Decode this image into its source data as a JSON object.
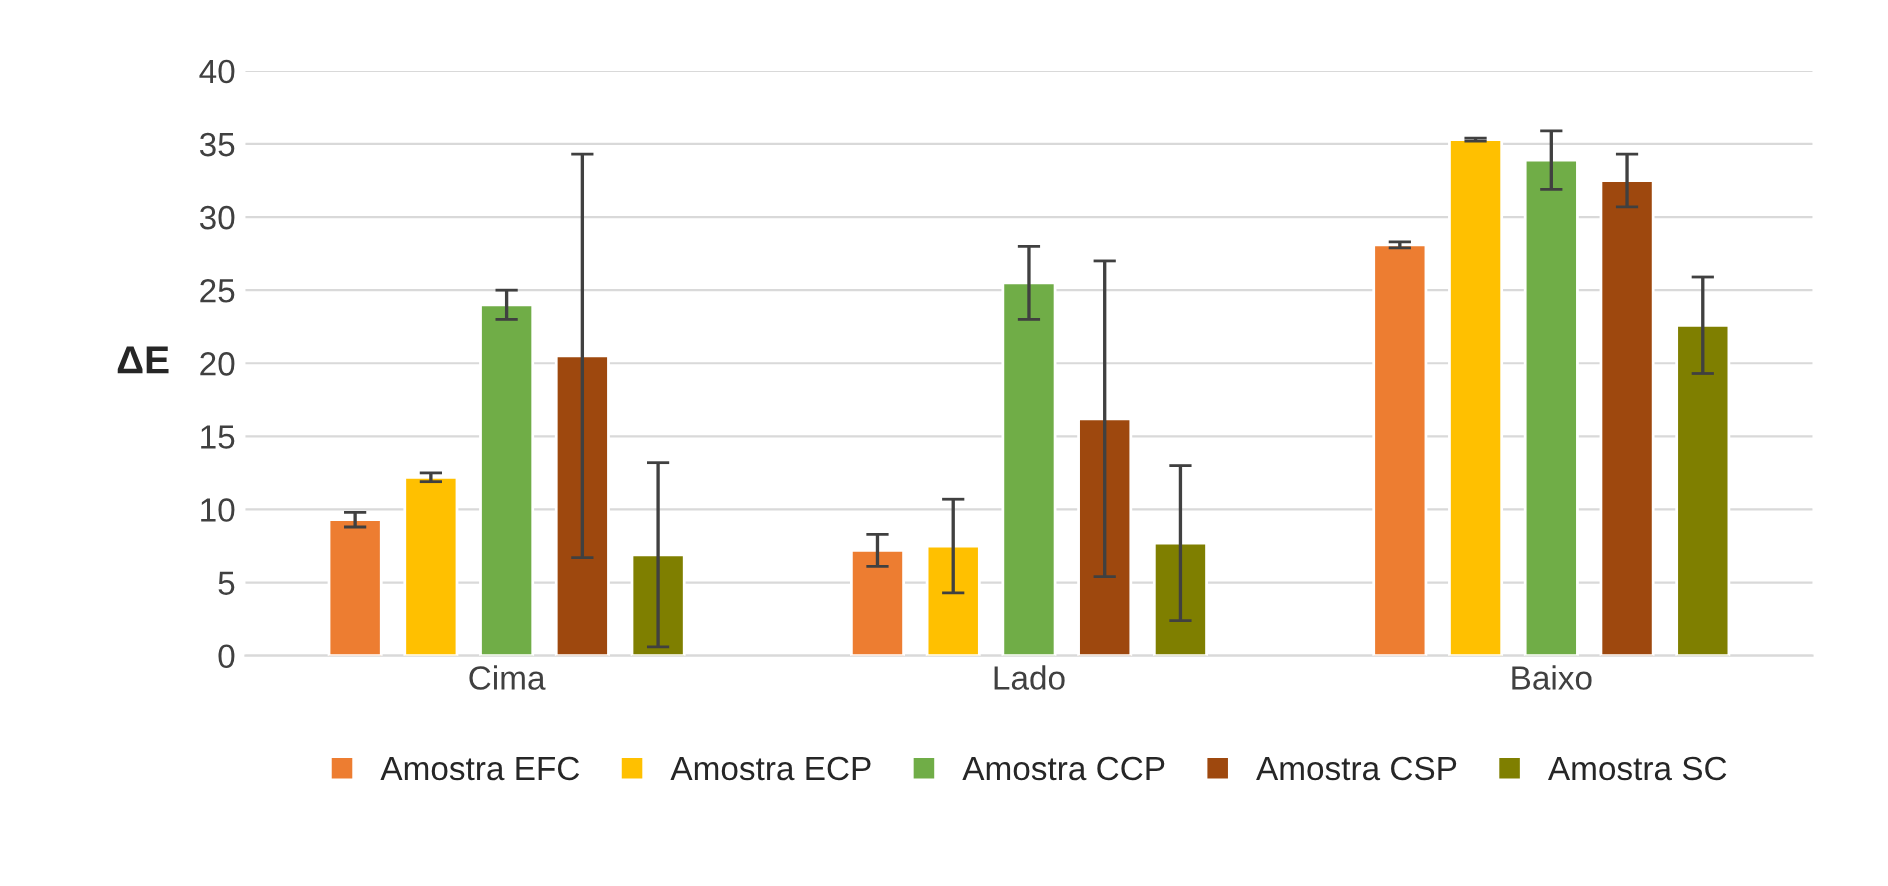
{
  "chart_data": {
    "type": "bar",
    "ylabel": "ΔE",
    "categories": [
      "Cima",
      "Lado",
      "Baixo"
    ],
    "series": [
      {
        "name": "Amostra EFC",
        "color": "#ed7d31",
        "values": [
          9.3,
          7.2,
          28.1
        ],
        "errors": [
          0.5,
          1.1,
          0.2
        ]
      },
      {
        "name": "Amostra ECP",
        "color": "#ffc000",
        "values": [
          12.2,
          7.5,
          35.3
        ],
        "errors": [
          0.3,
          3.2,
          0.1
        ]
      },
      {
        "name": "Amostra CCP",
        "color": "#70ad47",
        "values": [
          24.0,
          25.5,
          33.9
        ],
        "errors": [
          1.0,
          2.5,
          2.0
        ]
      },
      {
        "name": "Amostra CSP",
        "color": "#9e480e",
        "values": [
          20.5,
          16.2,
          32.5
        ],
        "errors": [
          13.8,
          10.8,
          1.8
        ]
      },
      {
        "name": "Amostra SC",
        "color": "#7f7f00",
        "values": [
          6.9,
          7.7,
          22.6
        ],
        "errors": [
          6.3,
          5.3,
          3.3
        ]
      }
    ],
    "ylim": [
      0,
      40
    ],
    "yticks": [
      0,
      5,
      10,
      15,
      20,
      25,
      30,
      35,
      40
    ],
    "grid": "y",
    "legend": "bottom"
  }
}
